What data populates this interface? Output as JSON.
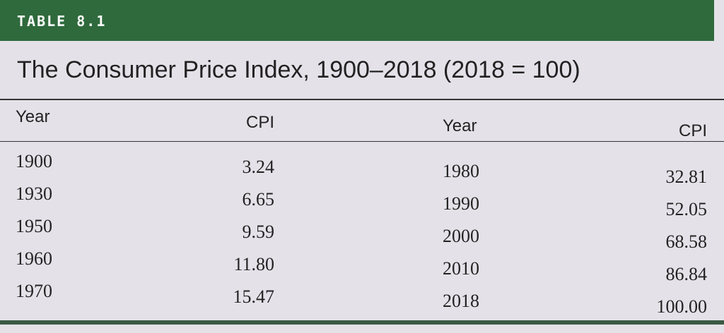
{
  "header": {
    "label": "TABLE 8.1",
    "title": "The Consumer Price Index, 1900–2018 (2018 = 100)"
  },
  "table": {
    "columns": [
      "Year",
      "CPI",
      "Year",
      "CPI"
    ],
    "rows": [
      [
        "1900",
        "3.24",
        "1980",
        "32.81"
      ],
      [
        "1930",
        "6.65",
        "1990",
        "52.05"
      ],
      [
        "1950",
        "9.59",
        "2000",
        "68.58"
      ],
      [
        "1960",
        "11.80",
        "2010",
        "86.84"
      ],
      [
        "1970",
        "15.47",
        "2018",
        "100.00"
      ]
    ]
  }
}
